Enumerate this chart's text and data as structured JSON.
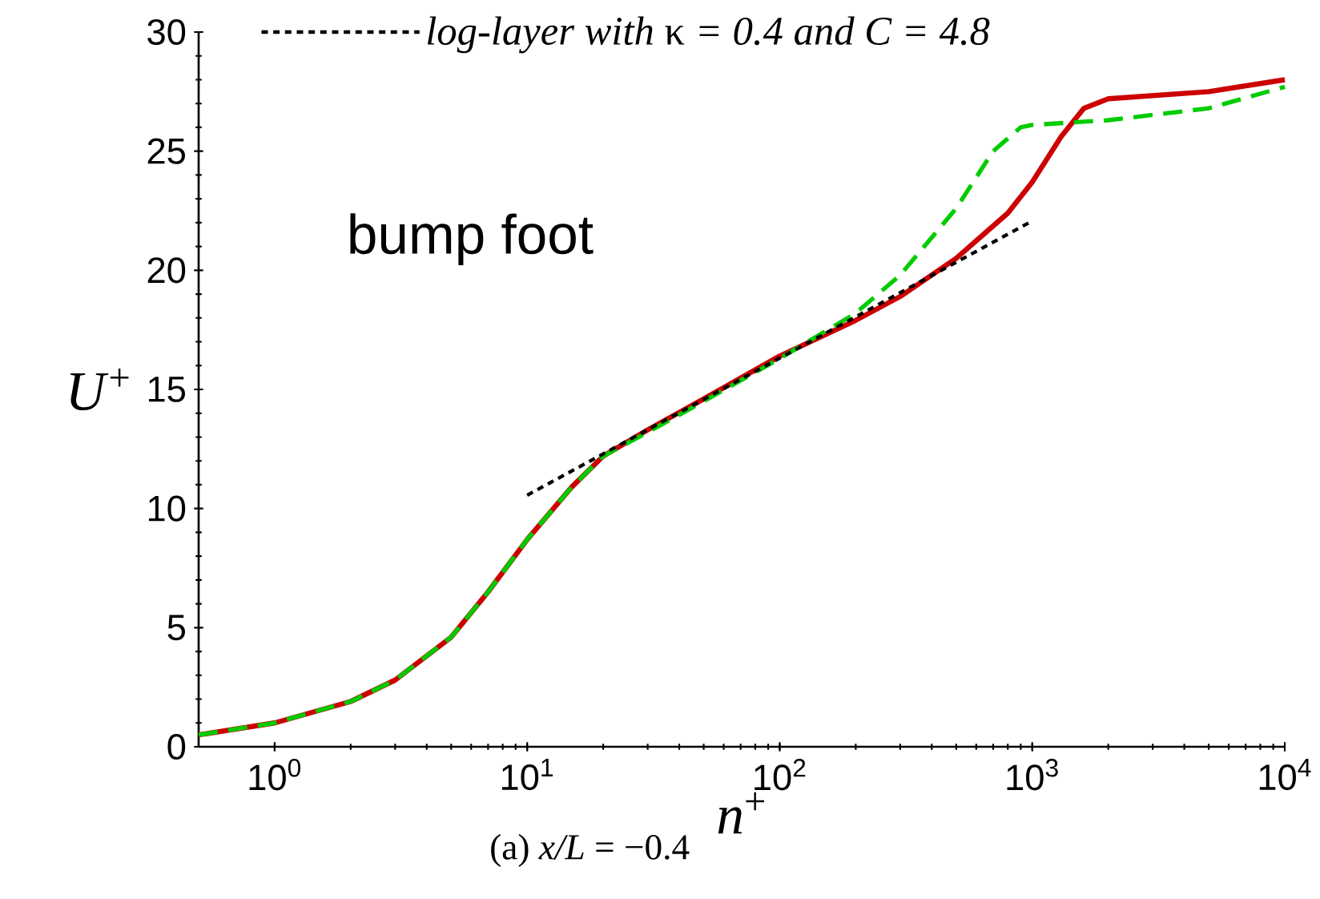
{
  "chart_data": {
    "type": "line",
    "log": "x",
    "xlabel": "*n*$^{+}$",
    "ylabel": "*U*$^{+}$",
    "xlim": [
      0.5,
      10000
    ],
    "ylim": [
      0,
      30
    ],
    "xticks": [
      {
        "value": 1,
        "label": "10$^{0}$"
      },
      {
        "value": 10,
        "label": "10$^{1}$"
      },
      {
        "value": 100,
        "label": "10$^{2}$"
      },
      {
        "value": 1000,
        "label": "10$^{3}$"
      },
      {
        "value": 10000,
        "label": "10$^{4}$"
      }
    ],
    "yticks": [
      0,
      5,
      10,
      15,
      20,
      25,
      30
    ],
    "legend": "top",
    "grid": false,
    "annotations": [
      "bump foot",
      "(a)  *x/L* = −0.4"
    ],
    "series": [
      {
        "color": "#cc0000",
        "line_style": "solid",
        "x": [
          0.5,
          1,
          2,
          3,
          5,
          7,
          10,
          15,
          20,
          30,
          50,
          100,
          200,
          300,
          500,
          800,
          1000,
          1300,
          1600,
          2000,
          5000,
          10000
        ],
        "values": [
          0.5,
          1.0,
          1.9,
          2.8,
          4.6,
          6.5,
          8.7,
          10.9,
          12.2,
          13.3,
          14.6,
          16.4,
          17.9,
          18.9,
          20.5,
          22.4,
          23.7,
          25.6,
          26.8,
          27.2,
          27.5,
          28.0
        ]
      },
      {
        "color": "#00cc00",
        "line_style": "dashed",
        "x": [
          0.5,
          1,
          2,
          3,
          5,
          7,
          10,
          15,
          20,
          30,
          50,
          100,
          200,
          300,
          500,
          700,
          900,
          1000,
          2000,
          5000,
          10000
        ],
        "values": [
          0.5,
          1.0,
          1.9,
          2.8,
          4.6,
          6.5,
          8.7,
          10.9,
          12.2,
          13.2,
          14.5,
          16.3,
          18.2,
          19.8,
          22.6,
          25.0,
          26.0,
          26.1,
          26.3,
          26.8,
          27.7
        ]
      },
      {
        "name": "*log-layer with* κ *= 0.4 and C = 4.8*",
        "color": "#000000",
        "line_style": "dotted",
        "x": [
          10,
          1000
        ],
        "values": [
          10.56,
          22.07
        ]
      }
    ]
  }
}
